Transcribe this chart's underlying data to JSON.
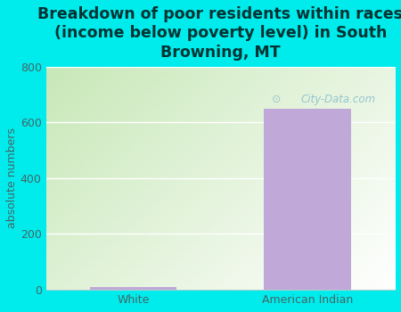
{
  "categories": [
    "White",
    "American Indian"
  ],
  "values": [
    7,
    648
  ],
  "bar_color": "#c0a8d8",
  "background_color": "#00ecec",
  "title": "Breakdown of poor residents within races\n(income below poverty level) in South\nBrowning, MT",
  "ylabel": "absolute numbers",
  "ylim": [
    0,
    800
  ],
  "yticks": [
    0,
    200,
    400,
    600,
    800
  ],
  "title_fontsize": 12.5,
  "ylabel_fontsize": 9,
  "tick_fontsize": 9,
  "watermark": "City-Data.com",
  "bar_width": 0.5,
  "plot_bg_topleft": "#c8e8b8",
  "plot_bg_topright": "#f0f8f0",
  "plot_bg_botleft": "#e8f5e0",
  "plot_bg_botright": "#ffffff",
  "title_color": "#003333"
}
